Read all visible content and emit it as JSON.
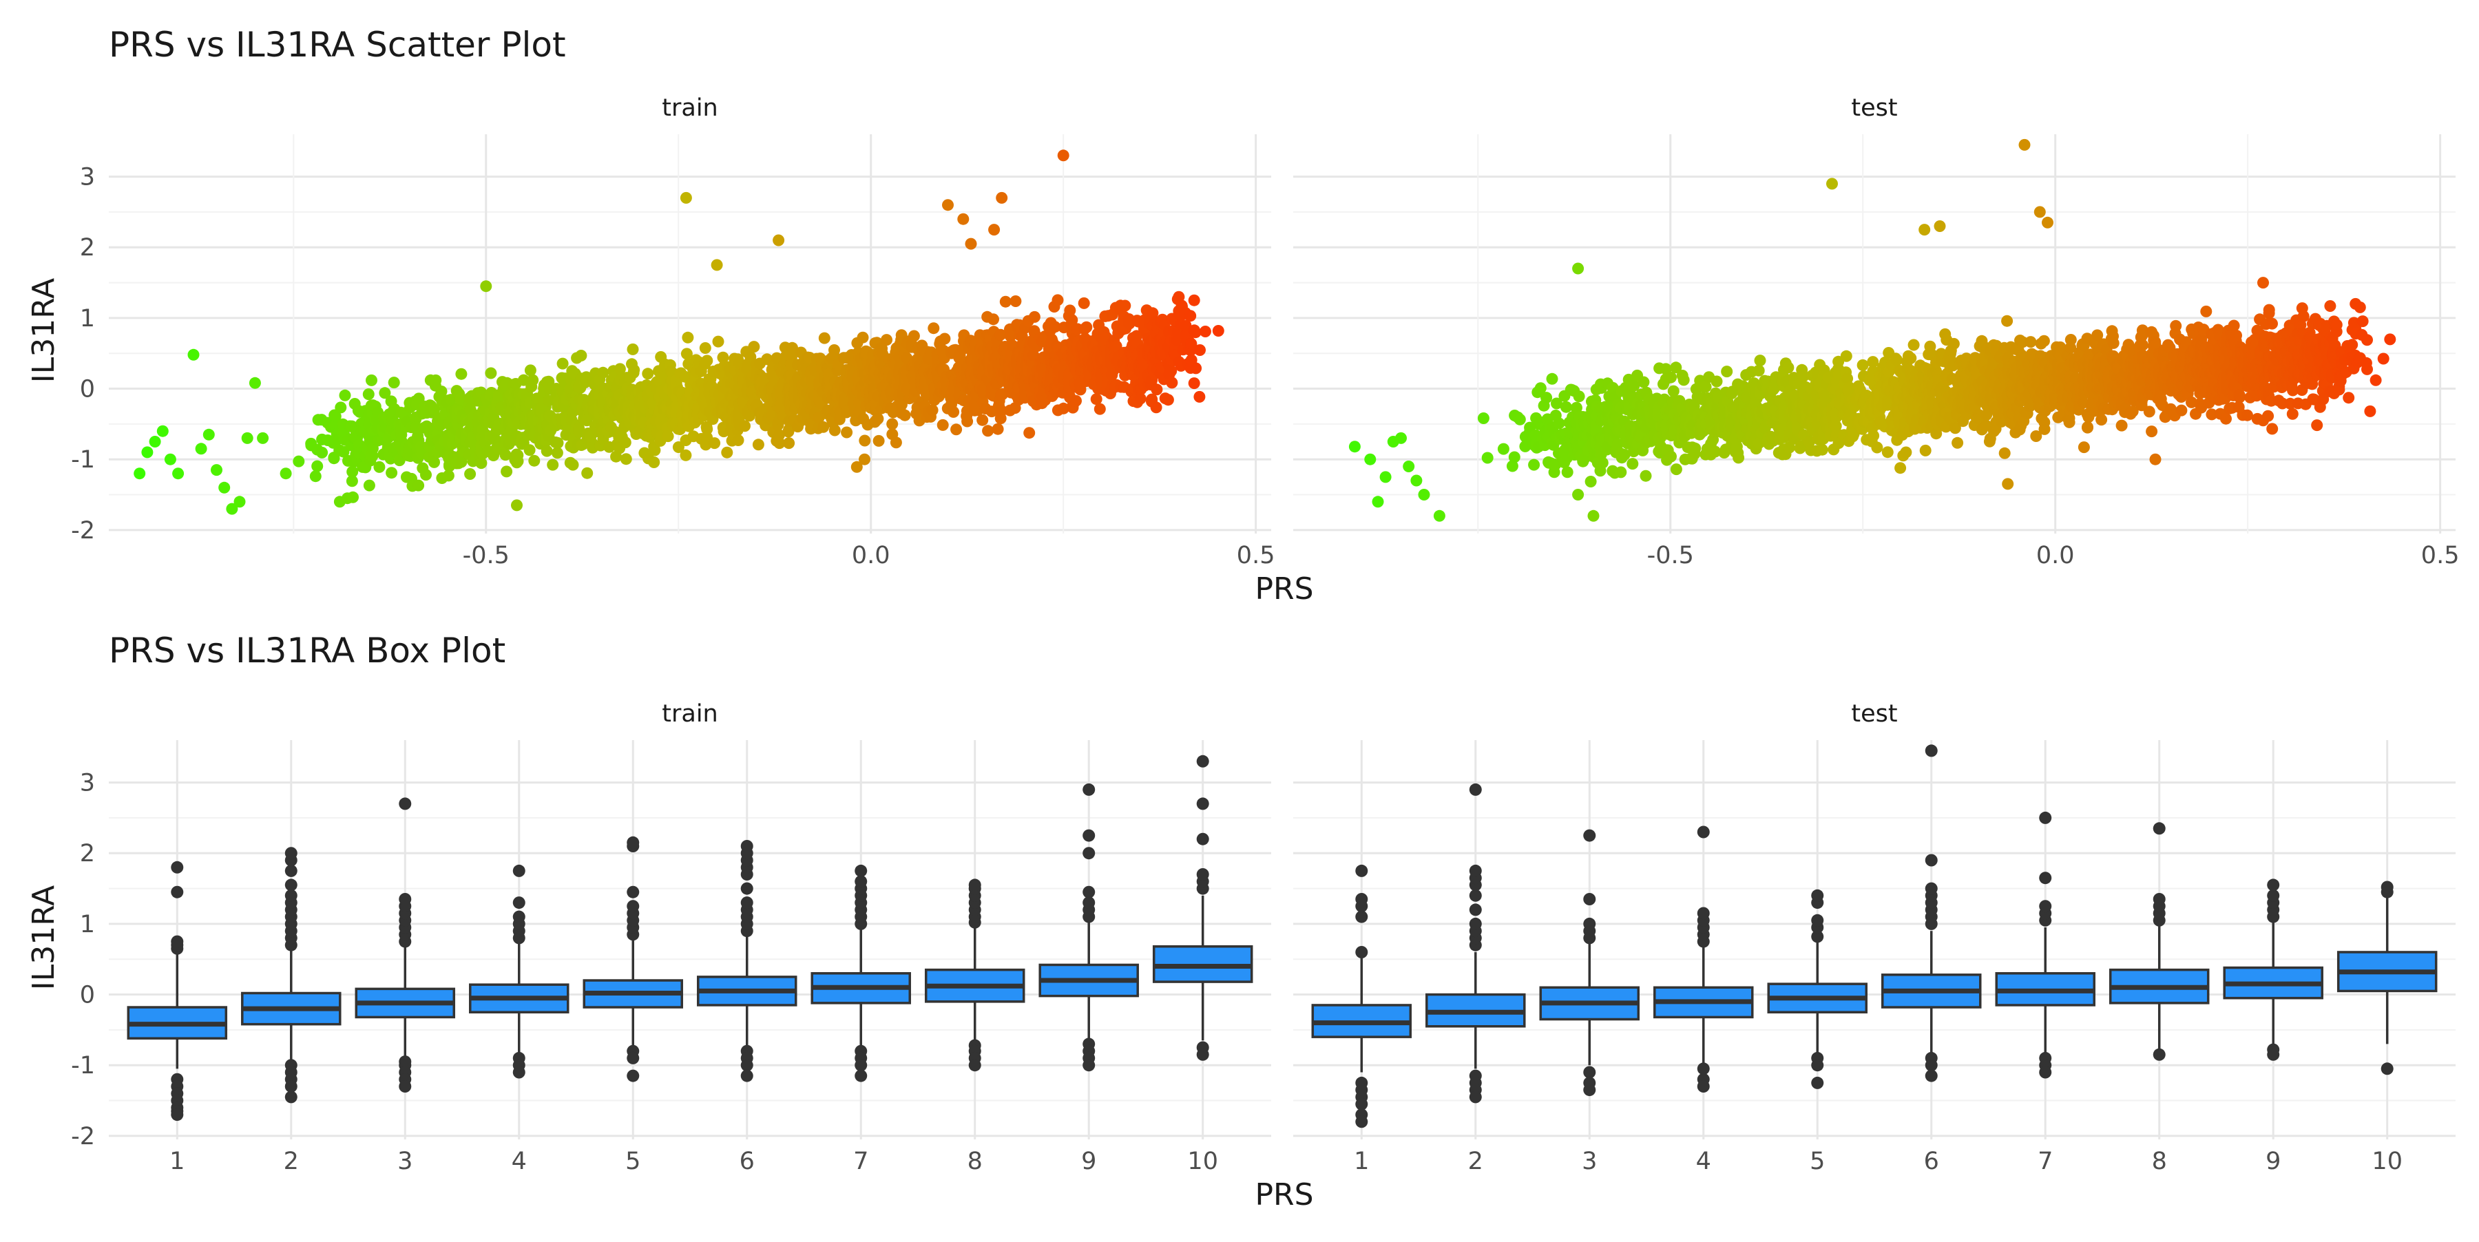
{
  "chart_data": [
    {
      "type": "scatter",
      "title": "PRS vs IL31RA Scatter Plot",
      "xlabel": "PRS",
      "ylabel": "IL31RA",
      "xlim": [
        -0.99,
        0.52
      ],
      "ylim": [
        -2.05,
        3.6
      ],
      "x_ticks": [
        -0.5,
        0.0,
        0.5
      ],
      "x_tick_labels": [
        "-0.5",
        "0.0",
        "0.5"
      ],
      "y_ticks": [
        -2,
        -1,
        0,
        1,
        2,
        3
      ],
      "y_tick_labels": [
        "-2",
        "-1",
        "0",
        "1",
        "2",
        "3"
      ],
      "grid": true,
      "color_scale": {
        "low": "#33ff00",
        "mid": "#c2b400",
        "high": "#ff2a00",
        "mapped_to": "PRS"
      },
      "facets": [
        {
          "label": "train",
          "trend": {
            "x_start": -0.7,
            "x_end": 0.4,
            "y_start": -0.72,
            "y_end": 0.55,
            "x_spread": 0.085,
            "y_sd": 0.3
          },
          "outliers": [
            [
              -0.95,
              -1.2
            ],
            [
              -0.94,
              -0.9
            ],
            [
              -0.93,
              -0.75
            ],
            [
              -0.92,
              -0.6
            ],
            [
              -0.91,
              -1.0
            ],
            [
              -0.9,
              -1.2
            ],
            [
              -0.88,
              0.48
            ],
            [
              -0.87,
              -0.85
            ],
            [
              -0.86,
              -0.65
            ],
            [
              -0.85,
              -1.15
            ],
            [
              -0.84,
              -1.4
            ],
            [
              -0.83,
              -1.7
            ],
            [
              -0.82,
              -1.6
            ],
            [
              -0.81,
              -0.7
            ],
            [
              -0.8,
              0.08
            ],
            [
              -0.79,
              -0.7
            ],
            [
              -0.76,
              -1.2
            ],
            [
              -0.69,
              -1.6
            ],
            [
              -0.68,
              -1.55
            ],
            [
              -0.5,
              1.45
            ],
            [
              -0.46,
              -1.65
            ],
            [
              -0.24,
              2.7
            ],
            [
              -0.2,
              1.75
            ],
            [
              -0.12,
              2.1
            ],
            [
              0.1,
              2.6
            ],
            [
              0.12,
              2.4
            ],
            [
              0.13,
              2.05
            ],
            [
              0.16,
              2.25
            ],
            [
              0.17,
              2.7
            ],
            [
              0.25,
              3.3
            ],
            [
              0.4,
              1.1
            ],
            [
              0.42,
              1.25
            ],
            [
              0.39,
              0.25
            ],
            [
              0.38,
              0.3
            ]
          ]
        },
        {
          "label": "test",
          "trend": {
            "x_start": -0.68,
            "x_end": 0.37,
            "y_start": -0.62,
            "y_end": 0.45,
            "x_spread": 0.085,
            "y_sd": 0.3
          },
          "outliers": [
            [
              -0.91,
              -0.82
            ],
            [
              -0.89,
              -1.0
            ],
            [
              -0.88,
              -1.6
            ],
            [
              -0.87,
              -1.25
            ],
            [
              -0.86,
              -0.75
            ],
            [
              -0.85,
              -0.7
            ],
            [
              -0.84,
              -1.1
            ],
            [
              -0.83,
              -1.3
            ],
            [
              -0.82,
              -1.5
            ],
            [
              -0.8,
              -1.8
            ],
            [
              -0.62,
              1.7
            ],
            [
              -0.62,
              -1.5
            ],
            [
              -0.6,
              -1.8
            ],
            [
              -0.29,
              2.9
            ],
            [
              -0.17,
              2.25
            ],
            [
              -0.15,
              2.3
            ],
            [
              -0.04,
              3.45
            ],
            [
              -0.02,
              2.5
            ],
            [
              -0.01,
              2.35
            ],
            [
              0.27,
              1.5
            ],
            [
              0.39,
              1.2
            ],
            [
              0.39,
              0.85
            ],
            [
              0.27,
              -0.45
            ],
            [
              0.13,
              -1.0
            ]
          ]
        }
      ]
    },
    {
      "type": "box",
      "title": "PRS vs IL31RA Box Plot",
      "xlabel": "PRS",
      "ylabel": "IL31RA",
      "categories": [
        "1",
        "2",
        "3",
        "4",
        "5",
        "6",
        "7",
        "8",
        "9",
        "10"
      ],
      "ylim": [
        -2.05,
        3.6
      ],
      "y_ticks": [
        -2,
        -1,
        0,
        1,
        2,
        3
      ],
      "y_tick_labels": [
        "-2",
        "-1",
        "0",
        "1",
        "2",
        "3"
      ],
      "grid": true,
      "box_color": "#2891f7",
      "facets": [
        {
          "label": "train",
          "boxes": [
            {
              "q1": -0.62,
              "median": -0.42,
              "q3": -0.18,
              "lo": -1.05,
              "hi": 0.6,
              "outliers": [
                -1.2,
                -1.3,
                -1.4,
                -1.5,
                -1.6,
                -1.65,
                -1.7,
                0.65,
                0.7,
                0.75,
                1.45,
                1.8
              ]
            },
            {
              "q1": -0.42,
              "median": -0.2,
              "q3": 0.02,
              "lo": -0.95,
              "hi": 0.65,
              "outliers": [
                -1.0,
                -1.1,
                -1.2,
                -1.3,
                -1.45,
                0.7,
                0.8,
                0.9,
                1.0,
                1.1,
                1.2,
                1.3,
                1.4,
                1.55,
                1.75,
                1.9,
                2.0
              ]
            },
            {
              "q1": -0.32,
              "median": -0.12,
              "q3": 0.08,
              "lo": -0.9,
              "hi": 0.72,
              "outliers": [
                -0.95,
                -1.0,
                -1.1,
                -1.2,
                -1.3,
                0.75,
                0.85,
                0.95,
                1.05,
                1.15,
                1.25,
                1.35,
                2.7
              ]
            },
            {
              "q1": -0.25,
              "median": -0.05,
              "q3": 0.14,
              "lo": -0.85,
              "hi": 0.75,
              "outliers": [
                -0.9,
                -1.0,
                -1.1,
                0.8,
                0.9,
                1.0,
                1.1,
                1.3,
                1.75
              ]
            },
            {
              "q1": -0.18,
              "median": 0.02,
              "q3": 0.2,
              "lo": -0.75,
              "hi": 0.8,
              "outliers": [
                -0.8,
                -0.9,
                -1.15,
                0.85,
                0.95,
                1.05,
                1.15,
                1.25,
                1.45,
                2.1,
                2.15
              ]
            },
            {
              "q1": -0.15,
              "median": 0.05,
              "q3": 0.25,
              "lo": -0.75,
              "hi": 0.85,
              "outliers": [
                -0.8,
                -0.9,
                -1.0,
                -1.15,
                0.9,
                1.0,
                1.1,
                1.2,
                1.3,
                1.5,
                1.7,
                1.8,
                1.9,
                2.0,
                2.1
              ]
            },
            {
              "q1": -0.12,
              "median": 0.1,
              "q3": 0.3,
              "lo": -0.75,
              "hi": 0.95,
              "outliers": [
                -0.8,
                -0.9,
                -1.0,
                -1.15,
                1.0,
                1.1,
                1.2,
                1.3,
                1.4,
                1.5,
                1.6,
                1.75
              ]
            },
            {
              "q1": -0.1,
              "median": 0.12,
              "q3": 0.35,
              "lo": -0.68,
              "hi": 0.98,
              "outliers": [
                -0.72,
                -0.8,
                -0.9,
                -1.0,
                1.02,
                1.1,
                1.2,
                1.3,
                1.4,
                1.5,
                1.55
              ]
            },
            {
              "q1": -0.02,
              "median": 0.2,
              "q3": 0.42,
              "lo": -0.65,
              "hi": 1.05,
              "outliers": [
                -0.7,
                -0.8,
                -0.9,
                -1.0,
                1.1,
                1.2,
                1.3,
                1.45,
                2.0,
                2.25,
                2.9
              ]
            },
            {
              "q1": 0.18,
              "median": 0.4,
              "q3": 0.68,
              "lo": -0.65,
              "hi": 1.4,
              "outliers": [
                -0.75,
                -0.85,
                1.5,
                1.6,
                1.7,
                2.2,
                2.7,
                3.3
              ]
            }
          ]
        },
        {
          "label": "test",
          "boxes": [
            {
              "q1": -0.6,
              "median": -0.4,
              "q3": -0.15,
              "lo": -1.1,
              "hi": 0.55,
              "outliers": [
                -1.25,
                -1.35,
                -1.45,
                -1.55,
                -1.7,
                -1.8,
                0.6,
                1.1,
                1.25,
                1.35,
                1.75
              ]
            },
            {
              "q1": -0.45,
              "median": -0.25,
              "q3": 0.0,
              "lo": -1.05,
              "hi": 0.6,
              "outliers": [
                -1.15,
                -1.25,
                -1.35,
                -1.45,
                0.7,
                0.8,
                0.9,
                1.0,
                1.2,
                1.4,
                1.55,
                1.65,
                1.75,
                2.9
              ]
            },
            {
              "q1": -0.35,
              "median": -0.12,
              "q3": 0.1,
              "lo": -1.0,
              "hi": 0.75,
              "outliers": [
                -1.1,
                -1.25,
                -1.35,
                0.8,
                0.9,
                1.0,
                1.35,
                2.25
              ]
            },
            {
              "q1": -0.32,
              "median": -0.1,
              "q3": 0.1,
              "lo": -1.0,
              "hi": 0.7,
              "outliers": [
                -1.05,
                -1.2,
                -1.3,
                0.75,
                0.85,
                0.95,
                1.05,
                1.15,
                2.3
              ]
            },
            {
              "q1": -0.25,
              "median": -0.05,
              "q3": 0.15,
              "lo": -0.85,
              "hi": 0.78,
              "outliers": [
                -0.9,
                -1.0,
                -1.25,
                0.82,
                0.95,
                1.05,
                1.3,
                1.4
              ]
            },
            {
              "q1": -0.18,
              "median": 0.05,
              "q3": 0.28,
              "lo": -0.85,
              "hi": 0.9,
              "outliers": [
                -0.9,
                -1.0,
                -1.15,
                1.0,
                1.1,
                1.2,
                1.3,
                1.4,
                1.5,
                1.9,
                3.45
              ]
            },
            {
              "q1": -0.15,
              "median": 0.05,
              "q3": 0.3,
              "lo": -0.85,
              "hi": 0.95,
              "outliers": [
                -0.9,
                -1.0,
                -1.1,
                1.05,
                1.15,
                1.25,
                1.65,
                2.5
              ]
            },
            {
              "q1": -0.12,
              "median": 0.1,
              "q3": 0.35,
              "lo": -0.78,
              "hi": 1.0,
              "outliers": [
                -0.85,
                1.05,
                1.15,
                1.25,
                1.35,
                2.35
              ]
            },
            {
              "q1": -0.05,
              "median": 0.15,
              "q3": 0.38,
              "lo": -0.72,
              "hi": 1.05,
              "outliers": [
                -0.78,
                -0.85,
                1.1,
                1.2,
                1.3,
                1.4,
                1.55
              ]
            },
            {
              "q1": 0.05,
              "median": 0.32,
              "q3": 0.6,
              "lo": -0.7,
              "hi": 1.4,
              "outliers": [
                -1.05,
                1.45,
                1.52
              ]
            }
          ]
        }
      ]
    }
  ]
}
